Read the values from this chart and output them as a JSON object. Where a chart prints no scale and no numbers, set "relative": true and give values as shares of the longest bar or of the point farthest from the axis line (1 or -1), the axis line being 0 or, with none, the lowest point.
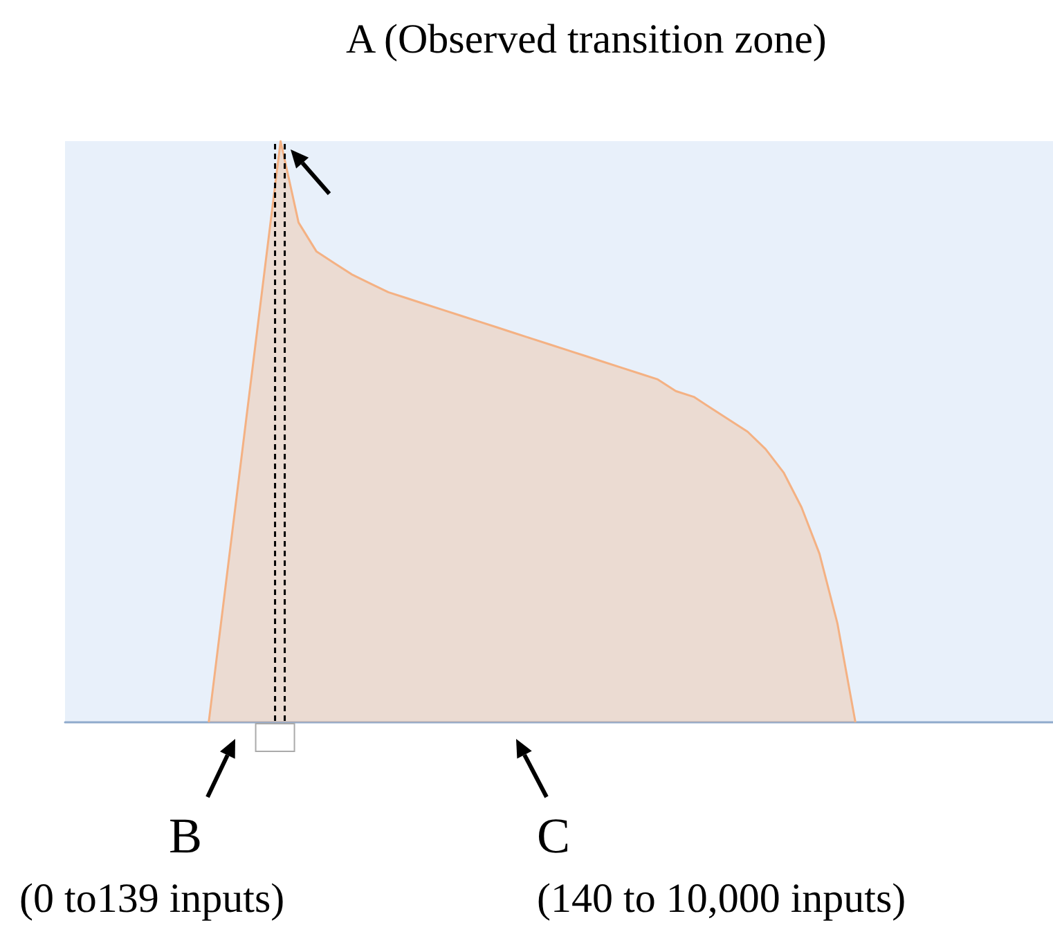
{
  "chart_data": {
    "type": "area",
    "relative": true,
    "tick_labels": false,
    "grid": false,
    "marker": "none",
    "line_style": "solid",
    "categories": [
      null,
      null,
      null,
      null,
      null,
      null,
      null,
      null,
      null,
      null,
      null,
      null,
      null,
      null,
      null,
      null,
      null,
      null,
      null,
      null,
      null,
      null,
      null,
      null,
      null,
      null,
      null,
      null,
      null,
      null,
      null,
      null,
      null,
      null,
      null,
      null,
      null,
      null,
      null,
      null,
      null,
      null,
      null,
      null,
      null,
      null,
      null,
      null,
      null,
      null,
      null,
      null,
      null,
      null,
      null,
      null
    ],
    "series": [
      {
        "color": "#f4b183",
        "values": [
          null,
          null,
          null,
          null,
          null,
          null,
          null,
          null,
          0,
          0.25,
          0.5,
          0.75,
          1,
          0.86,
          0.81,
          0.79,
          0.77,
          0.755,
          0.74,
          0.73,
          0.72,
          0.71,
          0.7,
          0.69,
          0.68,
          0.67,
          0.66,
          0.65,
          0.64,
          0.63,
          0.62,
          0.61,
          0.6,
          0.59,
          0.57,
          0.56,
          0.54,
          0.52,
          0.5,
          0.47,
          0.43,
          0.37,
          0.29,
          0.17,
          0,
          null,
          null,
          null,
          null,
          null,
          null,
          null,
          null,
          null,
          null,
          null
        ]
      }
    ],
    "annotations": [
      "A (Observed transition zone)",
      "B",
      "(0 to139 inputs)",
      "C",
      "(140 to 10,000 inputs)"
    ]
  }
}
